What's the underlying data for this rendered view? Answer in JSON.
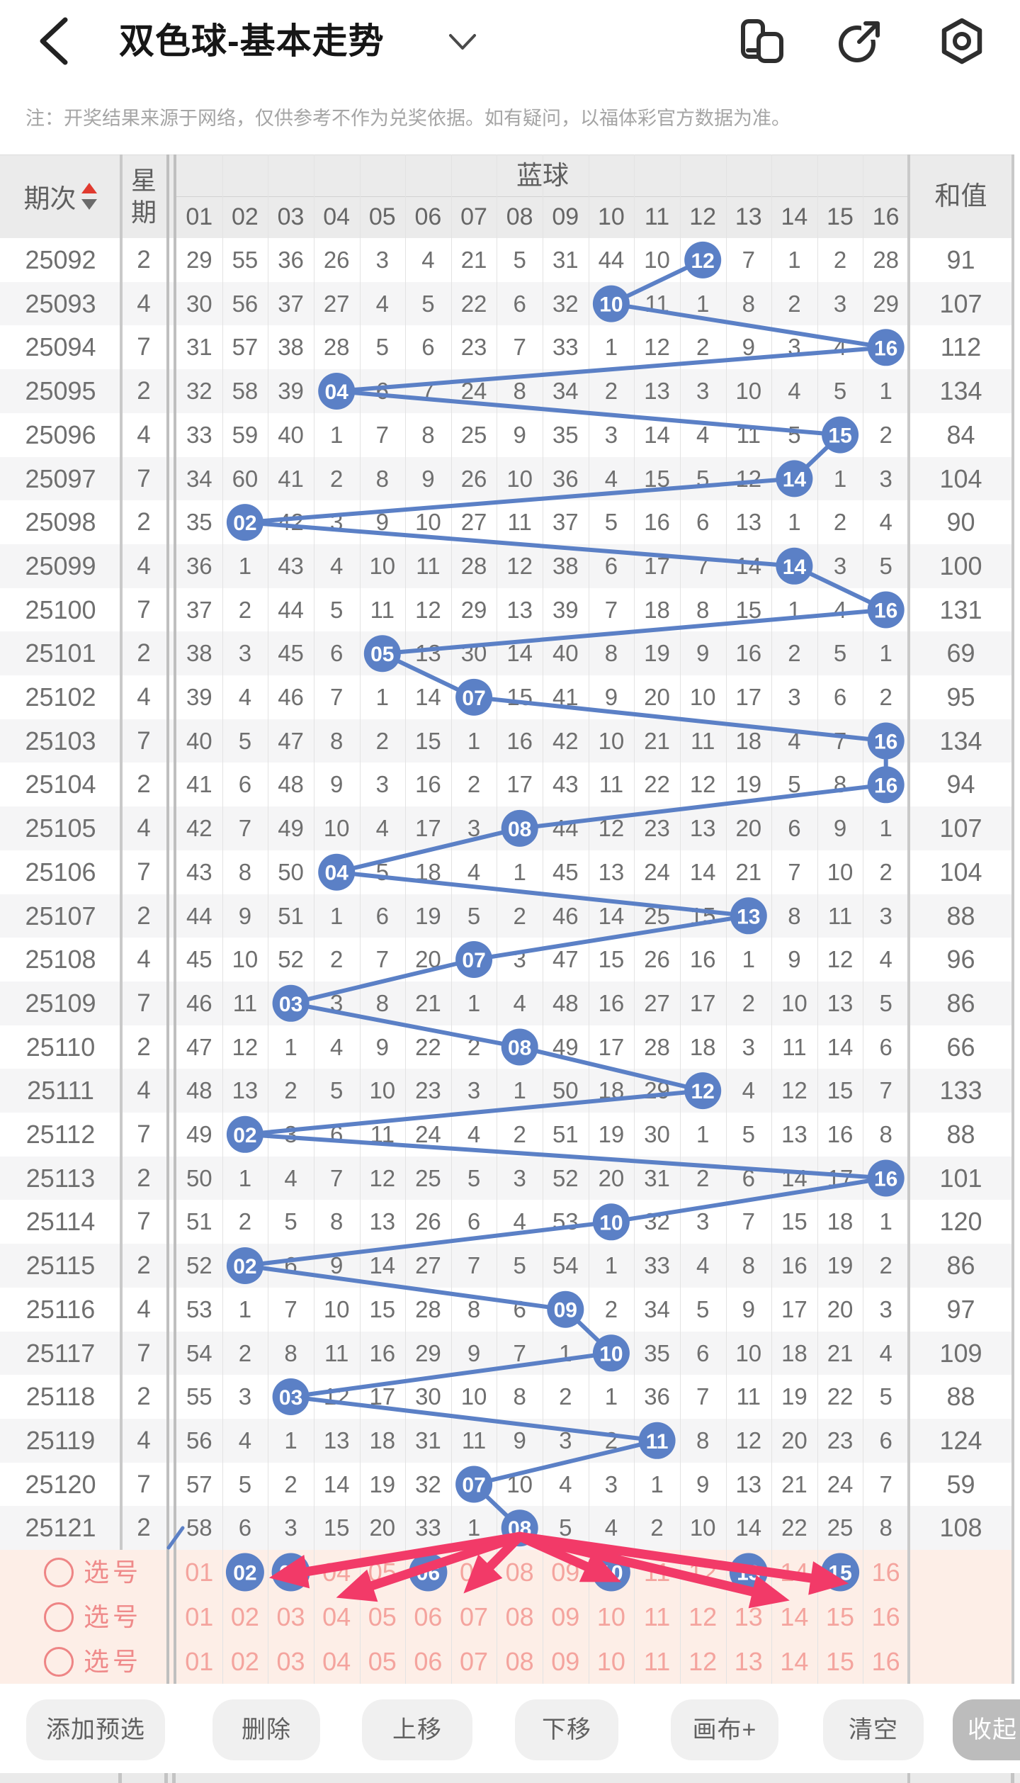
{
  "appbar": {
    "title": "双色球-基本走势",
    "icons": [
      "window-switch-icon",
      "share-icon",
      "settings-icon"
    ]
  },
  "notice": "注：开奖结果来源于网络，仅供参考不作为兑奖依据。如有疑问，以福体彩官方数据为准。",
  "table": {
    "period_header": "期次",
    "week_header": "星期",
    "group_header": "蓝球",
    "sum_header": "和值",
    "ball_columns": [
      "01",
      "02",
      "03",
      "04",
      "05",
      "06",
      "07",
      "08",
      "09",
      "10",
      "11",
      "12",
      "13",
      "14",
      "15",
      "16"
    ],
    "rows": [
      {
        "period": "25092",
        "week": "2",
        "ball": 12,
        "cells": [
          29,
          55,
          36,
          26,
          3,
          4,
          21,
          5,
          31,
          44,
          10,
          12,
          7,
          1,
          2,
          28
        ],
        "sum": "91"
      },
      {
        "period": "25093",
        "week": "4",
        "ball": 10,
        "cells": [
          30,
          56,
          37,
          27,
          4,
          5,
          22,
          6,
          32,
          10,
          11,
          1,
          8,
          2,
          3,
          29
        ],
        "sum": "107"
      },
      {
        "period": "25094",
        "week": "7",
        "ball": 16,
        "cells": [
          31,
          57,
          38,
          28,
          5,
          6,
          23,
          7,
          33,
          1,
          12,
          2,
          9,
          3,
          4,
          16
        ],
        "sum": "112"
      },
      {
        "period": "25095",
        "week": "2",
        "ball": 4,
        "cells": [
          32,
          58,
          39,
          4,
          6,
          7,
          24,
          8,
          34,
          2,
          13,
          3,
          10,
          4,
          5,
          1
        ],
        "sum": "134"
      },
      {
        "period": "25096",
        "week": "4",
        "ball": 15,
        "cells": [
          33,
          59,
          40,
          1,
          7,
          8,
          25,
          9,
          35,
          3,
          14,
          4,
          11,
          5,
          15,
          2
        ],
        "sum": "84"
      },
      {
        "period": "25097",
        "week": "7",
        "ball": 14,
        "cells": [
          34,
          60,
          41,
          2,
          8,
          9,
          26,
          10,
          36,
          4,
          15,
          5,
          12,
          14,
          1,
          3
        ],
        "sum": "104"
      },
      {
        "period": "25098",
        "week": "2",
        "ball": 2,
        "cells": [
          35,
          2,
          42,
          3,
          9,
          10,
          27,
          11,
          37,
          5,
          16,
          6,
          13,
          1,
          2,
          4
        ],
        "sum": "90"
      },
      {
        "period": "25099",
        "week": "4",
        "ball": 14,
        "cells": [
          36,
          1,
          43,
          4,
          10,
          11,
          28,
          12,
          38,
          6,
          17,
          7,
          14,
          14,
          3,
          5
        ],
        "sum": "100"
      },
      {
        "period": "25100",
        "week": "7",
        "ball": 16,
        "cells": [
          37,
          2,
          44,
          5,
          11,
          12,
          29,
          13,
          39,
          7,
          18,
          8,
          15,
          1,
          4,
          16
        ],
        "sum": "131"
      },
      {
        "period": "25101",
        "week": "2",
        "ball": 5,
        "cells": [
          38,
          3,
          45,
          6,
          5,
          13,
          30,
          14,
          40,
          8,
          19,
          9,
          16,
          2,
          5,
          1
        ],
        "sum": "69"
      },
      {
        "period": "25102",
        "week": "4",
        "ball": 7,
        "cells": [
          39,
          4,
          46,
          7,
          1,
          14,
          7,
          15,
          41,
          9,
          20,
          10,
          17,
          3,
          6,
          2
        ],
        "sum": "95"
      },
      {
        "period": "25103",
        "week": "7",
        "ball": 16,
        "cells": [
          40,
          5,
          47,
          8,
          2,
          15,
          1,
          16,
          42,
          10,
          21,
          11,
          18,
          4,
          7,
          16
        ],
        "sum": "134"
      },
      {
        "period": "25104",
        "week": "2",
        "ball": 16,
        "cells": [
          41,
          6,
          48,
          9,
          3,
          16,
          2,
          17,
          43,
          11,
          22,
          12,
          19,
          5,
          8,
          16
        ],
        "sum": "94"
      },
      {
        "period": "25105",
        "week": "4",
        "ball": 8,
        "cells": [
          42,
          7,
          49,
          10,
          4,
          17,
          3,
          8,
          44,
          12,
          23,
          13,
          20,
          6,
          9,
          1
        ],
        "sum": "107"
      },
      {
        "period": "25106",
        "week": "7",
        "ball": 4,
        "cells": [
          43,
          8,
          50,
          4,
          5,
          18,
          4,
          1,
          45,
          13,
          24,
          14,
          21,
          7,
          10,
          2
        ],
        "sum": "104"
      },
      {
        "period": "25107",
        "week": "2",
        "ball": 13,
        "cells": [
          44,
          9,
          51,
          1,
          6,
          19,
          5,
          2,
          46,
          14,
          25,
          15,
          13,
          8,
          11,
          3
        ],
        "sum": "88"
      },
      {
        "period": "25108",
        "week": "4",
        "ball": 7,
        "cells": [
          45,
          10,
          52,
          2,
          7,
          20,
          7,
          3,
          47,
          15,
          26,
          16,
          1,
          9,
          12,
          4
        ],
        "sum": "96"
      },
      {
        "period": "25109",
        "week": "7",
        "ball": 3,
        "cells": [
          46,
          11,
          3,
          3,
          8,
          21,
          1,
          4,
          48,
          16,
          27,
          17,
          2,
          10,
          13,
          5
        ],
        "sum": "86"
      },
      {
        "period": "25110",
        "week": "2",
        "ball": 8,
        "cells": [
          47,
          12,
          1,
          4,
          9,
          22,
          2,
          8,
          49,
          17,
          28,
          18,
          3,
          11,
          14,
          6
        ],
        "sum": "66"
      },
      {
        "period": "25111",
        "week": "4",
        "ball": 12,
        "cells": [
          48,
          13,
          2,
          5,
          10,
          23,
          3,
          1,
          50,
          18,
          29,
          12,
          4,
          12,
          15,
          7
        ],
        "sum": "133"
      },
      {
        "period": "25112",
        "week": "7",
        "ball": 2,
        "cells": [
          49,
          2,
          3,
          6,
          11,
          24,
          4,
          2,
          51,
          19,
          30,
          1,
          5,
          13,
          16,
          8
        ],
        "sum": "88"
      },
      {
        "period": "25113",
        "week": "2",
        "ball": 16,
        "cells": [
          50,
          1,
          4,
          7,
          12,
          25,
          5,
          3,
          52,
          20,
          31,
          2,
          6,
          14,
          17,
          16
        ],
        "sum": "101"
      },
      {
        "period": "25114",
        "week": "7",
        "ball": 10,
        "cells": [
          51,
          2,
          5,
          8,
          13,
          26,
          6,
          4,
          53,
          10,
          32,
          3,
          7,
          15,
          18,
          1
        ],
        "sum": "120"
      },
      {
        "period": "25115",
        "week": "2",
        "ball": 2,
        "cells": [
          52,
          2,
          6,
          9,
          14,
          27,
          7,
          5,
          54,
          1,
          33,
          4,
          8,
          16,
          19,
          2
        ],
        "sum": "86"
      },
      {
        "period": "25116",
        "week": "4",
        "ball": 9,
        "cells": [
          53,
          1,
          7,
          10,
          15,
          28,
          8,
          6,
          9,
          2,
          34,
          5,
          9,
          17,
          20,
          3
        ],
        "sum": "97"
      },
      {
        "period": "25117",
        "week": "7",
        "ball": 10,
        "cells": [
          54,
          2,
          8,
          11,
          16,
          29,
          9,
          7,
          1,
          10,
          35,
          6,
          10,
          18,
          21,
          4
        ],
        "sum": "109"
      },
      {
        "period": "25118",
        "week": "2",
        "ball": 3,
        "cells": [
          55,
          3,
          3,
          12,
          17,
          30,
          10,
          8,
          2,
          1,
          36,
          7,
          11,
          19,
          22,
          5
        ],
        "sum": "88"
      },
      {
        "period": "25119",
        "week": "4",
        "ball": 11,
        "cells": [
          56,
          4,
          1,
          13,
          18,
          31,
          11,
          9,
          3,
          2,
          11,
          8,
          12,
          20,
          23,
          6
        ],
        "sum": "124"
      },
      {
        "period": "25120",
        "week": "7",
        "ball": 7,
        "cells": [
          57,
          5,
          2,
          14,
          19,
          32,
          7,
          10,
          4,
          3,
          1,
          9,
          13,
          21,
          24,
          7
        ],
        "sum": "59"
      },
      {
        "period": "25121",
        "week": "2",
        "ball": 8,
        "cells": [
          58,
          6,
          3,
          15,
          20,
          33,
          1,
          8,
          5,
          4,
          2,
          10,
          14,
          22,
          25,
          8
        ],
        "sum": "108"
      }
    ]
  },
  "selection": {
    "label": "选号",
    "numbers": [
      "01",
      "02",
      "03",
      "04",
      "05",
      "06",
      "07",
      "08",
      "09",
      "10",
      "11",
      "12",
      "13",
      "14",
      "15",
      "16"
    ],
    "rows": [
      {
        "selected": [
          2,
          3,
          6,
          10,
          13,
          15
        ]
      },
      {
        "selected": []
      },
      {
        "selected": []
      }
    ]
  },
  "toolbar": {
    "buttons": [
      "添加预选",
      "删除",
      "上移",
      "下移",
      "画布+",
      "清空",
      "收起"
    ]
  },
  "colors": {
    "ball_blue": "#5b80c6",
    "arrow_pink": "#f23a68",
    "select_bg": "#fdeee7",
    "select_number": "#f4a49e",
    "select_label": "#ef8a8a",
    "sort_up_red": "#e03a2f",
    "sort_down_gray": "#6b6b6b",
    "header_bg": "#ebebeb",
    "row_alt_bg": "#f5f5f6",
    "cell_text": "#6f6f6f"
  }
}
